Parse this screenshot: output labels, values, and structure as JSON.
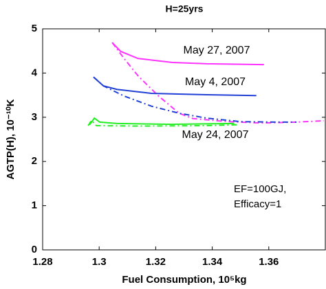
{
  "chart_data": {
    "type": "line",
    "title": "H=25yrs",
    "xlabel": "Fuel Consumption, 10⁵kg",
    "ylabel": "AGTP(H), 10⁻¹⁰K",
    "xlim": [
      1.28,
      1.38
    ],
    "xticks": [
      1.28,
      1.3,
      1.32,
      1.34,
      1.36
    ],
    "ylim": [
      0,
      5
    ],
    "yticks": [
      0,
      1,
      2,
      3,
      4,
      5
    ],
    "annotations": [
      "EF=100GJ,",
      "Efficacy=1"
    ],
    "series": [
      {
        "name": "May 27, 2007",
        "color": "#ff33ff",
        "linestyle": "solid",
        "x": [
          1.3046,
          1.3076,
          1.3137,
          1.3259,
          1.338,
          1.3583
        ],
        "values": [
          4.69,
          4.49,
          4.33,
          4.24,
          4.21,
          4.19
        ]
      },
      {
        "color": "#ff33ff",
        "linestyle": "dashdot",
        "x": [
          1.3046,
          1.3088,
          1.3137,
          1.321,
          1.3283,
          1.3332,
          1.3454,
          1.3576,
          1.3698,
          1.3795
        ],
        "values": [
          4.69,
          4.33,
          3.94,
          3.48,
          3.09,
          2.97,
          2.9,
          2.87,
          2.89,
          2.92
        ]
      },
      {
        "name": "May 4, 2007",
        "color": "#1f3fd6",
        "linestyle": "solid",
        "x": [
          1.298,
          1.3015,
          1.3063,
          1.3185,
          1.338,
          1.3556
        ],
        "values": [
          3.91,
          3.71,
          3.63,
          3.54,
          3.51,
          3.49
        ]
      },
      {
        "color": "#1f3fd6",
        "linestyle": "dashdot",
        "x": [
          1.298,
          1.3015,
          1.3088,
          1.3185,
          1.3283,
          1.338,
          1.3502,
          1.3624,
          1.3698
        ],
        "values": [
          3.91,
          3.71,
          3.48,
          3.25,
          3.09,
          2.98,
          2.9,
          2.89,
          2.89
        ]
      },
      {
        "name": "May 24, 2007",
        "color": "#22ee22",
        "linestyle": "solid",
        "x": [
          1.2966,
          1.2983,
          1.3002,
          1.3063,
          1.3259,
          1.3478
        ],
        "values": [
          2.83,
          2.98,
          2.89,
          2.86,
          2.84,
          2.86
        ]
      },
      {
        "color": "#22ee22",
        "linestyle": "dashdot",
        "x": [
          1.2961,
          1.2973,
          1.299,
          1.3137,
          1.338,
          1.349
        ],
        "values": [
          2.81,
          2.93,
          2.81,
          2.8,
          2.81,
          2.83
        ]
      }
    ]
  }
}
